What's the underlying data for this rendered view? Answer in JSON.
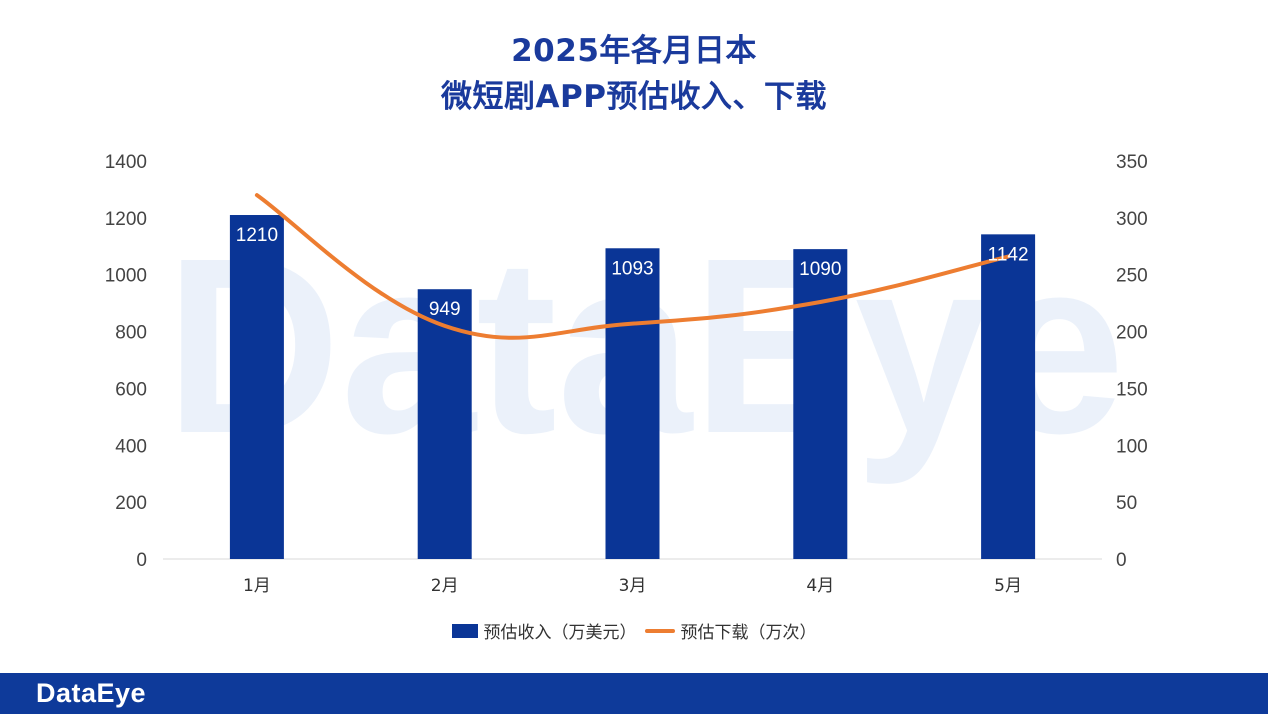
{
  "title": {
    "line1": "2025年各月日本",
    "line2": "微短剧APP预估收入、下载"
  },
  "watermark_text": "DataEye",
  "footer": {
    "brand": "DataEye"
  },
  "colors": {
    "bar": "#0a3596",
    "line": "#ed7d31",
    "title": "#1a3a9c",
    "footer": "#0e3a9a"
  },
  "chart_data": {
    "type": "bar+line",
    "categories": [
      "1月",
      "2月",
      "3月",
      "4月",
      "5月"
    ],
    "series": [
      {
        "name": "预估收入（万美元）",
        "type": "bar",
        "axis": "left",
        "values": [
          1210,
          949,
          1093,
          1090,
          1142
        ],
        "labels": [
          "1210",
          "949",
          "1093",
          "1090",
          "1142"
        ]
      },
      {
        "name": "预估下载（万次）",
        "type": "line",
        "axis": "right",
        "smooth": true,
        "values": [
          320,
          205,
          207,
          226,
          266
        ]
      }
    ],
    "y_left": {
      "min": 0,
      "max": 1400,
      "step": 200,
      "ticks": [
        "0",
        "200",
        "400",
        "600",
        "800",
        "1000",
        "1200",
        "1400"
      ]
    },
    "y_right": {
      "min": 0,
      "max": 350,
      "step": 50,
      "ticks": [
        "0",
        "50",
        "100",
        "150",
        "200",
        "250",
        "300",
        "350"
      ]
    },
    "legend_position": "bottom",
    "grid": false
  }
}
